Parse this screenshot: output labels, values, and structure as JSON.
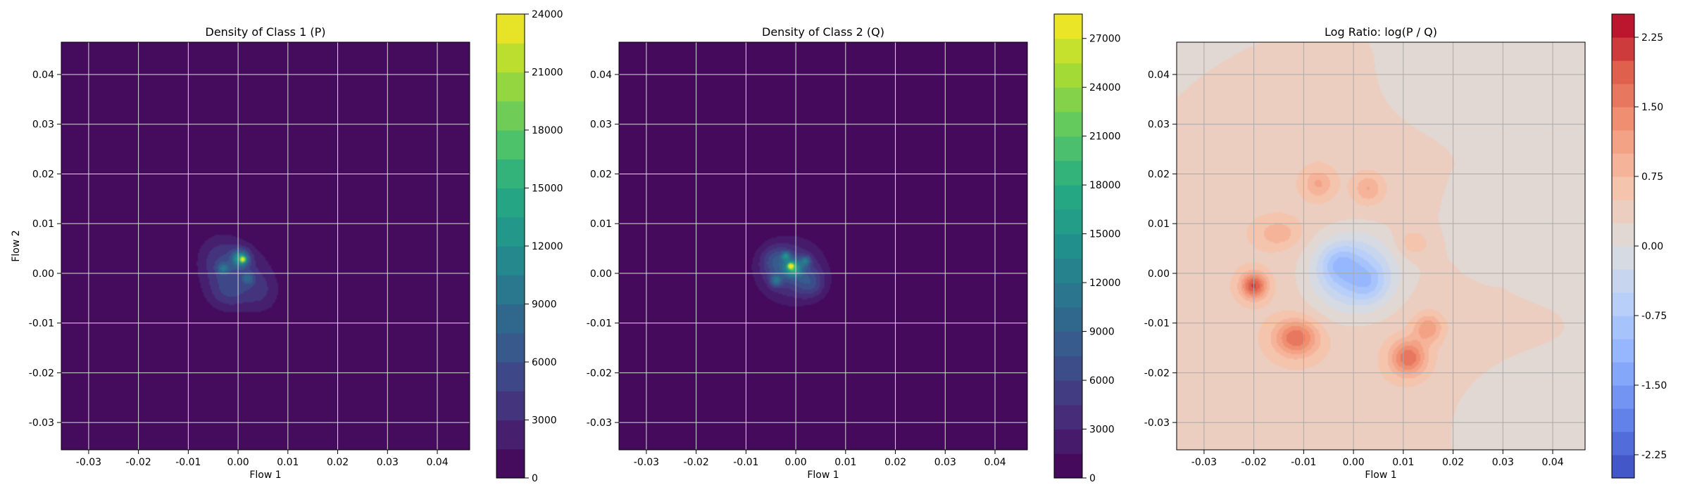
{
  "chart_data": [
    {
      "type": "heatmap",
      "title": "Density of Class 1 (P)",
      "xlabel": "Flow 1",
      "ylabel": "Flow 2",
      "xlim": [
        -0.0355,
        0.0465
      ],
      "ylim": [
        -0.0355,
        0.0465
      ],
      "xticks": [
        "-0.03",
        "-0.02",
        "-0.01",
        "0.00",
        "0.01",
        "0.02",
        "0.03",
        "0.04"
      ],
      "yticks": [
        "-0.03",
        "-0.02",
        "-0.01",
        "0.00",
        "0.01",
        "0.02",
        "0.03",
        "0.04"
      ],
      "grid": true,
      "colormap": "viridis",
      "colorbar": {
        "min": 0,
        "max": 24000,
        "ticks": [
          "0",
          "3000",
          "6000",
          "9000",
          "12000",
          "15000",
          "18000",
          "21000",
          "24000"
        ],
        "levels": 16
      },
      "background_color": "#440154",
      "blobs": [
        {
          "x": 0.0,
          "y": 0.0,
          "sx": 0.0045,
          "sy": 0.0045,
          "v": 3500
        },
        {
          "x": -0.004,
          "y": 0.003,
          "sx": 0.003,
          "sy": 0.0035,
          "v": 2500
        },
        {
          "x": 0.005,
          "y": -0.004,
          "sx": 0.0025,
          "sy": 0.003,
          "v": 2000
        },
        {
          "x": -0.002,
          "y": -0.004,
          "sx": 0.003,
          "sy": 0.0025,
          "v": 2500
        },
        {
          "x": 0.0005,
          "y": 0.003,
          "sx": 0.0012,
          "sy": 0.0012,
          "v": 10000
        },
        {
          "x": 0.001,
          "y": 0.0028,
          "sx": 0.0004,
          "sy": 0.0004,
          "v": 14000
        },
        {
          "x": -0.003,
          "y": 0.001,
          "sx": 0.0008,
          "sy": 0.0008,
          "v": 5000
        },
        {
          "x": 0.002,
          "y": -0.001,
          "sx": 0.0008,
          "sy": 0.0008,
          "v": 4500
        }
      ]
    },
    {
      "type": "heatmap",
      "title": "Density of Class 2 (Q)",
      "xlabel": "Flow 1",
      "ylabel": "",
      "xlim": [
        -0.0355,
        0.0465
      ],
      "ylim": [
        -0.0355,
        0.0465
      ],
      "xticks": [
        "-0.03",
        "-0.02",
        "-0.01",
        "0.00",
        "0.01",
        "0.02",
        "0.03",
        "0.04"
      ],
      "yticks": [
        "-0.03",
        "-0.02",
        "-0.01",
        "0.00",
        "0.01",
        "0.02",
        "0.03",
        "0.04"
      ],
      "grid": true,
      "colormap": "viridis",
      "colorbar": {
        "min": 0,
        "max": 28500,
        "ticks": [
          "0",
          "3000",
          "6000",
          "9000",
          "12000",
          "15000",
          "18000",
          "21000",
          "24000",
          "27000"
        ],
        "levels": 19
      },
      "background_color": "#440154",
      "blobs": [
        {
          "x": -0.001,
          "y": 0.0005,
          "sx": 0.0045,
          "sy": 0.0042,
          "v": 6000
        },
        {
          "x": -0.004,
          "y": 0.0025,
          "sx": 0.002,
          "sy": 0.002,
          "v": 4000
        },
        {
          "x": 0.003,
          "y": -0.002,
          "sx": 0.002,
          "sy": 0.002,
          "v": 4000
        },
        {
          "x": -0.0005,
          "y": 0.001,
          "sx": 0.0012,
          "sy": 0.0012,
          "v": 12000
        },
        {
          "x": -0.001,
          "y": 0.0015,
          "sx": 0.0004,
          "sy": 0.0004,
          "v": 18000
        },
        {
          "x": 0.002,
          "y": 0.0025,
          "sx": 0.0007,
          "sy": 0.0007,
          "v": 7000
        },
        {
          "x": -0.004,
          "y": -0.0015,
          "sx": 0.0008,
          "sy": 0.0008,
          "v": 7000
        },
        {
          "x": -0.002,
          "y": 0.0035,
          "sx": 0.0006,
          "sy": 0.0006,
          "v": 8000
        }
      ]
    },
    {
      "type": "heatmap",
      "title": "Log Ratio: log(P / Q)",
      "xlabel": "Flow 1",
      "ylabel": "",
      "xlim": [
        -0.0355,
        0.0465
      ],
      "ylim": [
        -0.0355,
        0.0465
      ],
      "xticks": [
        "-0.03",
        "-0.02",
        "-0.01",
        "0.00",
        "0.01",
        "0.02",
        "0.03",
        "0.04"
      ],
      "yticks": [
        "-0.03",
        "-0.02",
        "-0.01",
        "0.00",
        "0.01",
        "0.02",
        "0.03",
        "0.04"
      ],
      "grid": true,
      "colormap": "coolwarm",
      "colorbar": {
        "min": -2.5,
        "max": 2.5,
        "ticks": [
          "-2.25",
          "-1.50",
          "-0.75",
          "0.00",
          "0.75",
          "1.50",
          "2.25"
        ],
        "levels": 20
      },
      "base_value": 0.45,
      "blobs": [
        {
          "x": 0.0,
          "y": 0.0,
          "sx": 0.006,
          "sy": 0.0055,
          "v": -1.3
        },
        {
          "x": -0.003,
          "y": 0.002,
          "sx": 0.0025,
          "sy": 0.0025,
          "v": -0.5
        },
        {
          "x": 0.003,
          "y": -0.002,
          "sx": 0.0025,
          "sy": 0.0025,
          "v": -0.4
        },
        {
          "x": -0.02,
          "y": -0.0025,
          "sx": 0.0018,
          "sy": 0.0018,
          "v": 1.6
        },
        {
          "x": -0.0115,
          "y": -0.013,
          "sx": 0.003,
          "sy": 0.0025,
          "v": 1.3
        },
        {
          "x": 0.011,
          "y": -0.017,
          "sx": 0.0025,
          "sy": 0.0025,
          "v": 1.3
        },
        {
          "x": 0.015,
          "y": -0.011,
          "sx": 0.002,
          "sy": 0.002,
          "v": 0.8
        },
        {
          "x": -0.007,
          "y": 0.018,
          "sx": 0.002,
          "sy": 0.002,
          "v": 0.6
        },
        {
          "x": 0.003,
          "y": 0.017,
          "sx": 0.002,
          "sy": 0.002,
          "v": 0.6
        },
        {
          "x": -0.015,
          "y": 0.008,
          "sx": 0.003,
          "sy": 0.002,
          "v": 0.5
        },
        {
          "x": 0.012,
          "y": 0.006,
          "sx": 0.0025,
          "sy": 0.002,
          "v": 0.4
        },
        {
          "x": 0.03,
          "y": 0.01,
          "sx": 0.012,
          "sy": 0.012,
          "v": -0.35
        },
        {
          "x": 0.032,
          "y": -0.028,
          "sx": 0.01,
          "sy": 0.008,
          "v": -0.3
        },
        {
          "x": 0.015,
          "y": 0.035,
          "sx": 0.01,
          "sy": 0.008,
          "v": -0.2
        }
      ]
    }
  ]
}
